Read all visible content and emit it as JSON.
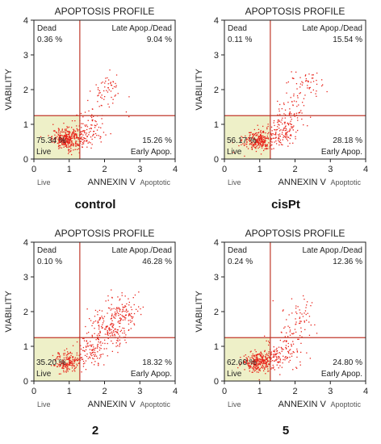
{
  "colors": {
    "dots": "#e8241b",
    "gate_line": "#c0392b",
    "live_fill": "#eef0c8",
    "axis": "#222222"
  },
  "chart_data": [
    {
      "type": "scatter",
      "title": "APOPTOSIS PROFILE",
      "xlabel": "ANNEXIN V",
      "ylabel": "VIABILITY",
      "xlim": [
        0,
        4
      ],
      "ylim": [
        0,
        4
      ],
      "xticks": [
        "0",
        "1",
        "2",
        "3",
        "4"
      ],
      "yticks": [
        "0",
        "1",
        "2",
        "3",
        "4"
      ],
      "x_sublabels": {
        "left": "Live",
        "right": "Apoptotic"
      },
      "gates": {
        "x": 1.3,
        "y": 1.25
      },
      "quadrants": {
        "dead": {
          "name": "Dead",
          "pct": "0.36 %"
        },
        "late": {
          "name": "Late Apop./Dead",
          "pct": "9.04 %"
        },
        "live": {
          "name": "Live",
          "pct": "75.34 %"
        },
        "early": {
          "name": "Early Apop.",
          "pct": "15.26 %"
        }
      },
      "caption": "control",
      "clusters": [
        {
          "cx": 0.95,
          "cy": 0.6,
          "sx": 0.22,
          "sy": 0.15,
          "n": 330
        },
        {
          "cx": 1.55,
          "cy": 0.75,
          "sx": 0.22,
          "sy": 0.18,
          "n": 70
        },
        {
          "cx": 2.1,
          "cy": 2.05,
          "sx": 0.18,
          "sy": 0.22,
          "n": 45
        },
        {
          "cx": 1.6,
          "cy": 1.3,
          "sx": 0.4,
          "sy": 0.45,
          "n": 40
        }
      ]
    },
    {
      "type": "scatter",
      "title": "APOPTOSIS PROFILE",
      "xlabel": "ANNEXIN V",
      "ylabel": "VIABILITY",
      "xlim": [
        0,
        4
      ],
      "ylim": [
        0,
        4
      ],
      "xticks": [
        "0",
        "1",
        "2",
        "3",
        "4"
      ],
      "yticks": [
        "0",
        "1",
        "2",
        "3",
        "4"
      ],
      "x_sublabels": {
        "left": "Live",
        "right": "Apoptotic"
      },
      "gates": {
        "x": 1.3,
        "y": 1.25
      },
      "quadrants": {
        "dead": {
          "name": "Dead",
          "pct": "0.11 %"
        },
        "late": {
          "name": "Late Apop./Dead",
          "pct": "15.54 %"
        },
        "live": {
          "name": "Live",
          "pct": "56.17 %"
        },
        "early": {
          "name": "Early Apop.",
          "pct": "28.18 %"
        }
      },
      "caption": "cisPt",
      "clusters": [
        {
          "cx": 0.95,
          "cy": 0.55,
          "sx": 0.22,
          "sy": 0.15,
          "n": 260
        },
        {
          "cx": 1.6,
          "cy": 0.8,
          "sx": 0.25,
          "sy": 0.2,
          "n": 120
        },
        {
          "cx": 1.9,
          "cy": 1.45,
          "sx": 0.22,
          "sy": 0.25,
          "n": 60
        },
        {
          "cx": 2.25,
          "cy": 2.2,
          "sx": 0.25,
          "sy": 0.18,
          "n": 50
        }
      ]
    },
    {
      "type": "scatter",
      "title": "APOPTOSIS PROFILE",
      "xlabel": "ANNEXIN V",
      "ylabel": "VIABILITY",
      "xlim": [
        0,
        4
      ],
      "ylim": [
        0,
        4
      ],
      "xticks": [
        "0",
        "1",
        "2",
        "3",
        "4"
      ],
      "yticks": [
        "0",
        "1",
        "2",
        "3",
        "4"
      ],
      "x_sublabels": {
        "left": "Live",
        "right": "Apoptotic"
      },
      "gates": {
        "x": 1.3,
        "y": 1.25
      },
      "quadrants": {
        "dead": {
          "name": "Dead",
          "pct": "0.10 %"
        },
        "late": {
          "name": "Late Apop./Dead",
          "pct": "46.28 %"
        },
        "live": {
          "name": "Live",
          "pct": "35.20 %"
        },
        "early": {
          "name": "Early Apop.",
          "pct": "18.32 %"
        }
      },
      "caption": "2",
      "clusters": [
        {
          "cx": 0.95,
          "cy": 0.55,
          "sx": 0.2,
          "sy": 0.15,
          "n": 190
        },
        {
          "cx": 1.6,
          "cy": 0.85,
          "sx": 0.22,
          "sy": 0.22,
          "n": 90
        },
        {
          "cx": 2.1,
          "cy": 1.5,
          "sx": 0.28,
          "sy": 0.3,
          "n": 170
        },
        {
          "cx": 2.5,
          "cy": 2.0,
          "sx": 0.25,
          "sy": 0.25,
          "n": 100
        }
      ]
    },
    {
      "type": "scatter",
      "title": "APOPTOSIS PROFILE",
      "xlabel": "ANNEXIN V",
      "ylabel": "VIABILITY",
      "xlim": [
        0,
        4
      ],
      "ylim": [
        0,
        4
      ],
      "xticks": [
        "0",
        "1",
        "2",
        "3",
        "4"
      ],
      "yticks": [
        "0",
        "1",
        "2",
        "3",
        "4"
      ],
      "x_sublabels": {
        "left": "Live",
        "right": "Apoptotic"
      },
      "gates": {
        "x": 1.3,
        "y": 1.25
      },
      "quadrants": {
        "dead": {
          "name": "Dead",
          "pct": "0.24 %"
        },
        "late": {
          "name": "Late Apop./Dead",
          "pct": "12.36 %"
        },
        "live": {
          "name": "Live",
          "pct": "62.60 %"
        },
        "early": {
          "name": "Early Apop.",
          "pct": "24.80 %"
        }
      },
      "caption": "5",
      "clusters": [
        {
          "cx": 0.95,
          "cy": 0.55,
          "sx": 0.22,
          "sy": 0.15,
          "n": 290
        },
        {
          "cx": 1.6,
          "cy": 0.8,
          "sx": 0.25,
          "sy": 0.2,
          "n": 110
        },
        {
          "cx": 1.9,
          "cy": 1.5,
          "sx": 0.3,
          "sy": 0.35,
          "n": 45
        },
        {
          "cx": 2.2,
          "cy": 2.0,
          "sx": 0.2,
          "sy": 0.2,
          "n": 30
        }
      ]
    }
  ]
}
